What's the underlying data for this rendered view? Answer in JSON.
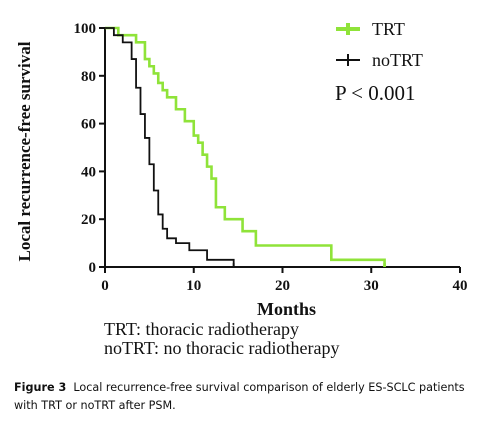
{
  "chart_data": {
    "type": "line",
    "xlabel": "Months",
    "ylabel": "Local recurrence-free survival",
    "xlim": [
      0,
      40
    ],
    "ylim": [
      0,
      100
    ],
    "xticks": [
      0,
      10,
      20,
      30,
      40
    ],
    "yticks": [
      0,
      20,
      40,
      60,
      80,
      100
    ],
    "grid": false,
    "legend_position": "top-right",
    "annotation": "P < 0.001",
    "series": [
      {
        "name": "TRT",
        "color": "#8fe339",
        "step": true,
        "x": [
          0,
          1.5,
          3.5,
          4.5,
          5.0,
          5.5,
          6.0,
          6.5,
          7.0,
          8.0,
          9.0,
          10.0,
          10.5,
          11.0,
          11.5,
          12.0,
          12.5,
          13.5,
          15.5,
          17.0,
          25.5,
          31.5
        ],
        "y": [
          100,
          97,
          94,
          87,
          84,
          81,
          77,
          74,
          71,
          66,
          61,
          55,
          52,
          47,
          42,
          37,
          25,
          20,
          15,
          9,
          3,
          0
        ]
      },
      {
        "name": "noTRT",
        "color": "#111111",
        "step": true,
        "x": [
          0,
          1.0,
          2.0,
          3.0,
          3.5,
          4.0,
          4.5,
          5.0,
          5.5,
          6.0,
          6.5,
          7.0,
          8.0,
          9.5,
          11.5,
          14.5
        ],
        "y": [
          100,
          97,
          94,
          87,
          75,
          64,
          54,
          43,
          32,
          22,
          16,
          12,
          10,
          7,
          3,
          0
        ]
      }
    ]
  },
  "notes": [
    "TRT: thoracic radiotherapy",
    "noTRT: no thoracic radiotherapy"
  ],
  "caption": {
    "label": "Figure 3",
    "text": "Local recurrence-free survival comparison of elderly ES-SCLC patients with TRT or noTRT after PSM."
  }
}
